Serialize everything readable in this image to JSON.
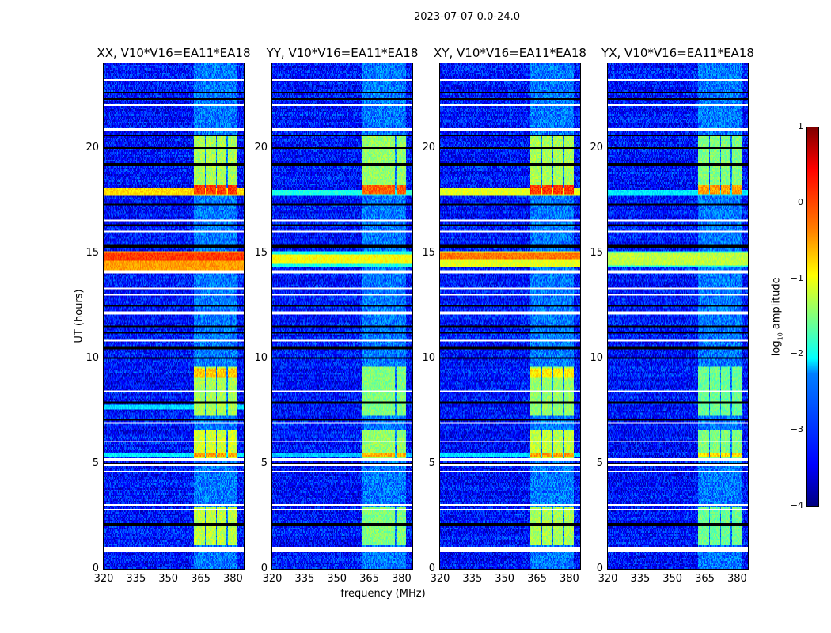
{
  "chart_data": {
    "type": "heatmap",
    "title": "2023-07-07 0.0-24.0",
    "xlabel": "frequency (MHz)",
    "ylabel": "UT (hours)",
    "xlim": [
      320,
      385
    ],
    "ylim": [
      0,
      24
    ],
    "xticks": [
      "320",
      "335",
      "350",
      "365",
      "380"
    ],
    "yticks": [
      "0",
      "5",
      "10",
      "15",
      "20"
    ],
    "colorbar": {
      "label": "log10 amplitude",
      "label_main": "log",
      "label_sub": "10",
      "label_rest": " amplitude",
      "range": [
        -4,
        1
      ],
      "ticks": [
        "1",
        "0",
        "−1",
        "−2",
        "−3",
        "−4"
      ],
      "colormap": "jet"
    },
    "background_level": -3.3,
    "rfi_channels_mhz": [
      [
        362,
        367
      ],
      [
        367.5,
        372
      ],
      [
        372.5,
        377
      ],
      [
        377.5,
        382
      ]
    ],
    "flagged_rows_hours": [
      [
        0.85,
        1.05
      ],
      [
        2.75,
        2.82
      ],
      [
        3.0,
        3.1
      ],
      [
        3.5,
        3.55
      ],
      [
        4.6,
        4.65
      ],
      [
        4.9,
        4.95
      ],
      [
        5.1,
        5.25
      ],
      [
        6.0,
        6.05
      ],
      [
        6.9,
        6.95
      ],
      [
        8.4,
        8.45
      ],
      [
        10.8,
        10.85
      ],
      [
        11.9,
        11.95
      ],
      [
        12.05,
        12.2
      ],
      [
        13.0,
        13.05
      ],
      [
        13.3,
        13.35
      ],
      [
        14.0,
        14.2
      ],
      [
        15.5,
        15.55
      ],
      [
        16.0,
        16.05
      ],
      [
        16.5,
        16.55
      ],
      [
        17.0,
        17.05
      ],
      [
        20.75,
        20.9
      ],
      [
        21.5,
        21.55
      ],
      [
        22.0,
        22.05
      ],
      [
        23.2,
        23.25
      ]
    ],
    "dark_rows_hours": [
      2.1,
      5.0,
      7.1,
      7.9,
      10.0,
      10.5,
      11.2,
      11.5,
      12.5,
      15.3,
      16.3,
      17.3,
      19.2,
      20.0,
      20.6,
      22.3,
      22.6
    ],
    "panels": [
      {
        "title": "XX, V10*V16=EA11*EA18",
        "rfi": [
          [
            1.1,
            2.9,
            -1.2
          ],
          [
            5.25,
            6.6,
            -1.1
          ],
          [
            5.3,
            5.5,
            -0.4
          ],
          [
            7.3,
            9.6,
            -1.3
          ],
          [
            9.1,
            9.5,
            -0.6
          ],
          [
            17.8,
            20.6,
            -1.3
          ],
          [
            17.8,
            18.2,
            0.1
          ]
        ],
        "broadband": [
          [
            14.2,
            15.1,
            -0.4
          ],
          [
            14.6,
            15.0,
            0.1
          ],
          [
            17.7,
            18.1,
            -0.7
          ],
          [
            7.6,
            7.8,
            -2.3
          ],
          [
            5.3,
            5.5,
            -2.2
          ]
        ]
      },
      {
        "title": "YY, V10*V16=EA11*EA18",
        "rfi": [
          [
            1.1,
            2.9,
            -1.5
          ],
          [
            5.25,
            6.6,
            -1.4
          ],
          [
            5.3,
            5.5,
            -0.5
          ],
          [
            7.3,
            9.6,
            -1.5
          ],
          [
            17.8,
            20.6,
            -1.4
          ],
          [
            17.8,
            18.2,
            -0.1
          ]
        ],
        "broadband": [
          [
            14.3,
            15.1,
            -2.0
          ],
          [
            14.5,
            14.9,
            -0.9
          ],
          [
            17.7,
            18.0,
            -2.0
          ],
          [
            5.3,
            5.5,
            -2.4
          ]
        ]
      },
      {
        "title": "XY, V10*V16=EA11*EA18",
        "rfi": [
          [
            1.1,
            2.9,
            -1.3
          ],
          [
            5.25,
            6.6,
            -1.2
          ],
          [
            5.3,
            5.5,
            -0.4
          ],
          [
            7.3,
            9.6,
            -1.4
          ],
          [
            9.1,
            9.5,
            -0.8
          ],
          [
            17.8,
            20.6,
            -1.3
          ],
          [
            17.8,
            18.2,
            0.1
          ]
        ],
        "broadband": [
          [
            14.3,
            15.1,
            -1.0
          ],
          [
            14.7,
            15.0,
            -0.2
          ],
          [
            17.7,
            18.1,
            -1.0
          ],
          [
            5.3,
            5.5,
            -2.3
          ]
        ]
      },
      {
        "title": "YX, V10*V16=EA11*EA18",
        "rfi": [
          [
            1.1,
            2.9,
            -1.6
          ],
          [
            5.25,
            6.6,
            -1.5
          ],
          [
            5.3,
            5.5,
            -0.7
          ],
          [
            7.3,
            9.6,
            -1.6
          ],
          [
            17.8,
            20.6,
            -1.5
          ],
          [
            17.8,
            18.2,
            -0.4
          ]
        ],
        "broadband": [
          [
            14.3,
            15.1,
            -2.0
          ],
          [
            14.4,
            15.0,
            -1.2
          ],
          [
            17.7,
            18.0,
            -2.2
          ]
        ]
      }
    ]
  }
}
